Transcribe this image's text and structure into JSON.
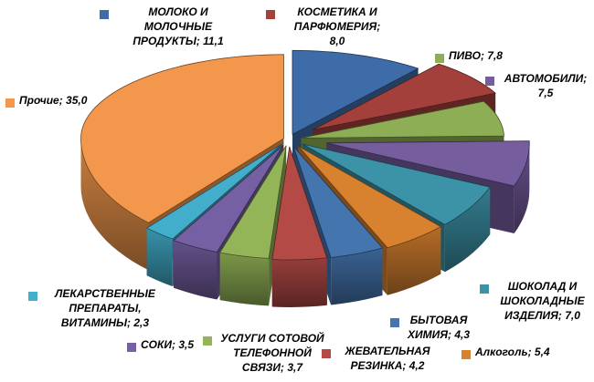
{
  "chart_data": {
    "type": "pie",
    "style": "3d-exploded",
    "unit": "percent",
    "title": "",
    "legend_position": "data-labels-around-pie",
    "background": "#FFFFFF",
    "slices": [
      {
        "label": "МОЛОКО И МОЛОЧНЫЕ ПРОДУКТЫ",
        "value": 11.1,
        "color": "#3E6CA8"
      },
      {
        "label": "КОСМЕТИКА И ПАРФЮМЕРИЯ",
        "value": 8.0,
        "color": "#A4403C"
      },
      {
        "label": "ПИВО",
        "value": 7.8,
        "color": "#8EAE55"
      },
      {
        "label": "АВТОМОБИЛИ",
        "value": 7.5,
        "color": "#765D9E"
      },
      {
        "label": "ШОКОЛАД И ШОКОЛАДНЫЕ ИЗДЕЛИЯ",
        "value": 7.0,
        "color": "#3C93A8"
      },
      {
        "label": "Алкоголь",
        "value": 5.4,
        "color": "#D8822F"
      },
      {
        "label": "БЫТОВАЯ ХИМИЯ",
        "value": 4.3,
        "color": "#4575AF"
      },
      {
        "label": "ЖЕВАТЕЛЬНАЯ РЕЗИНКА",
        "value": 4.2,
        "color": "#B34A46"
      },
      {
        "label": "УСЛУГИ СОТОВОЙ ТЕЛЕФОННОЙ СВЯЗИ",
        "value": 3.7,
        "color": "#93B457"
      },
      {
        "label": "СОКИ",
        "value": 3.5,
        "color": "#7560A3"
      },
      {
        "label": "ЛЕКАРСТВЕННЫЕ ПРЕПАРАТЫ, ВИТАМИНЫ",
        "value": 2.3,
        "color": "#43AECC"
      },
      {
        "label": "Прочие",
        "value": 35.0,
        "color": "#F2974B"
      }
    ]
  },
  "labels": [
    {
      "lines": [
        "МОЛОКО И",
        "МОЛОЧНЫЕ",
        "ПРОДУКТЫ; 11,1"
      ]
    },
    {
      "lines": [
        "КОСМЕТИКА И",
        "ПАРФЮМЕРИЯ;",
        "8,0"
      ]
    },
    {
      "lines": [
        "ПИВО; 7,8"
      ]
    },
    {
      "lines": [
        "АВТОМОБИЛИ;",
        "7,5"
      ]
    },
    {
      "lines": [
        "ШОКОЛАД И",
        "ШОКОЛАДНЫЕ",
        "ИЗДЕЛИЯ; 7,0"
      ]
    },
    {
      "lines": [
        "Алкоголь; 5,4"
      ]
    },
    {
      "lines": [
        "БЫТОВАЯ",
        "ХИМИЯ; 4,3"
      ]
    },
    {
      "lines": [
        "ЖЕВАТЕЛЬНАЯ",
        "РЕЗИНКА; 4,2"
      ]
    },
    {
      "lines": [
        "УСЛУГИ СОТОВОЙ",
        "ТЕЛЕФОННОЙ",
        "СВЯЗИ; 3,7"
      ]
    },
    {
      "lines": [
        "СОКИ; 3,5"
      ]
    },
    {
      "lines": [
        "ЛЕКАРСТВЕННЫЕ",
        "ПРЕПАРАТЫ,",
        "ВИТАМИНЫ; 2,3"
      ]
    },
    {
      "lines": [
        "Прочие; 35,0"
      ]
    }
  ],
  "text_color": "#000000"
}
